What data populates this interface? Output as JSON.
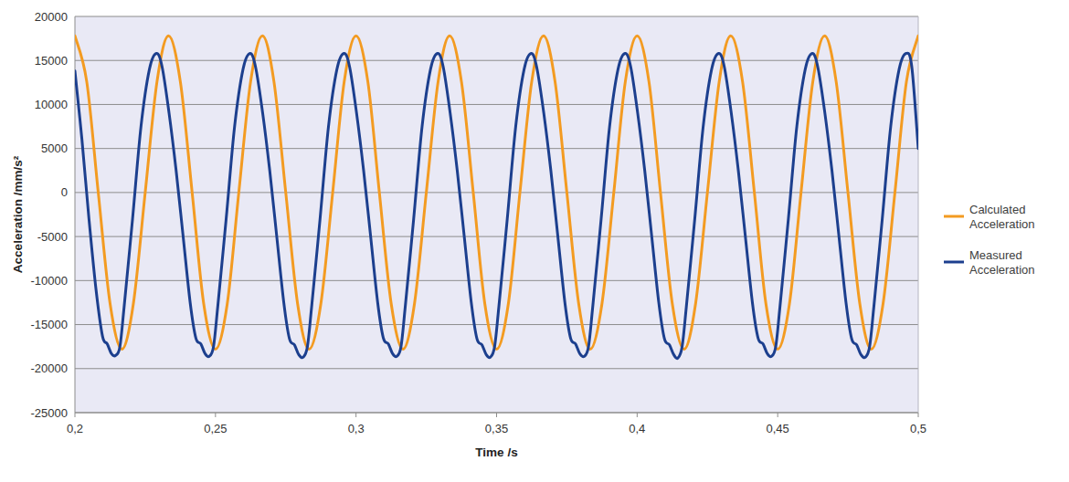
{
  "chart_data": {
    "type": "line",
    "xlabel": "Time /s",
    "ylabel": "Acceleration /mm/s²",
    "xlim": [
      0.2,
      0.5
    ],
    "ylim": [
      -25000,
      20000
    ],
    "xticks": [
      {
        "value": 0.2,
        "label": "0,2"
      },
      {
        "value": 0.25,
        "label": "0,25"
      },
      {
        "value": 0.3,
        "label": "0,3"
      },
      {
        "value": 0.35,
        "label": "0,35"
      },
      {
        "value": 0.4,
        "label": "0,4"
      },
      {
        "value": 0.45,
        "label": "0,45"
      },
      {
        "value": 0.5,
        "label": "0,5"
      }
    ],
    "yticks": [
      -25000,
      -20000,
      -15000,
      -10000,
      -5000,
      0,
      5000,
      10000,
      15000,
      20000
    ],
    "grid": true,
    "legend": "right",
    "series": [
      {
        "name": "Calculated Acceleration",
        "color": "#f39b21",
        "x": [
          0.2,
          0.2042,
          0.2083,
          0.2125,
          0.2167,
          0.2208,
          0.225,
          0.2292,
          0.2333,
          0.2375,
          0.2417,
          0.2458,
          0.25,
          0.2542,
          0.2583,
          0.2625,
          0.2667,
          0.2708,
          0.275,
          0.2792,
          0.2833,
          0.2875,
          0.2917,
          0.2958,
          0.3,
          0.3042,
          0.3083,
          0.3125,
          0.3167,
          0.3208,
          0.325,
          0.3292,
          0.3333,
          0.3375,
          0.3417,
          0.3458,
          0.35,
          0.3542,
          0.3583,
          0.3625,
          0.3667,
          0.3708,
          0.375,
          0.3792,
          0.3833,
          0.3875,
          0.3917,
          0.3958,
          0.4,
          0.4042,
          0.4083,
          0.4125,
          0.4167,
          0.4208,
          0.425,
          0.4292,
          0.4333,
          0.4375,
          0.4417,
          0.4458,
          0.45,
          0.4542,
          0.4583,
          0.4625,
          0.4667,
          0.4708,
          0.475,
          0.4792,
          0.4833,
          0.4875,
          0.4917,
          0.4958,
          0.5
        ],
        "values": [
          17800,
          12600,
          0,
          -12600,
          -17800,
          -12600,
          0,
          12600,
          17800,
          12600,
          0,
          -12600,
          -17800,
          -12600,
          0,
          12600,
          17800,
          12600,
          0,
          -12600,
          -17800,
          -12600,
          0,
          12600,
          17800,
          12600,
          0,
          -12600,
          -17800,
          -12600,
          0,
          12600,
          17800,
          12600,
          0,
          -12600,
          -17800,
          -12600,
          0,
          12600,
          17800,
          12600,
          0,
          -12600,
          -17800,
          -12600,
          0,
          12600,
          17800,
          12600,
          0,
          -12600,
          -17800,
          -12600,
          0,
          12600,
          17800,
          12600,
          0,
          -12600,
          -17800,
          -12600,
          0,
          12600,
          17800,
          12600,
          0,
          -12600,
          -17800,
          -12600,
          0,
          12600,
          17800
        ]
      },
      {
        "name": "Measured Acceleration",
        "color": "#1c3f8e",
        "x": [
          0.2,
          0.2025,
          0.205,
          0.2075,
          0.2098,
          0.2115,
          0.213,
          0.2145,
          0.216,
          0.2175,
          0.2205,
          0.2235,
          0.2265,
          0.229,
          0.231,
          0.2335,
          0.236,
          0.2385,
          0.241,
          0.243,
          0.2448,
          0.2463,
          0.2478,
          0.2493,
          0.2508,
          0.2538,
          0.2568,
          0.2598,
          0.2623,
          0.2643,
          0.2668,
          0.2693,
          0.2718,
          0.2743,
          0.2763,
          0.2781,
          0.2796,
          0.2812,
          0.2827,
          0.2842,
          0.2872,
          0.2902,
          0.2932,
          0.2957,
          0.2977,
          0.3002,
          0.3027,
          0.3052,
          0.3077,
          0.3097,
          0.3115,
          0.313,
          0.3145,
          0.316,
          0.3175,
          0.3205,
          0.3235,
          0.3265,
          0.329,
          0.331,
          0.3335,
          0.336,
          0.3385,
          0.341,
          0.343,
          0.3448,
          0.3463,
          0.3478,
          0.3493,
          0.3508,
          0.3538,
          0.3568,
          0.3598,
          0.3623,
          0.3643,
          0.3668,
          0.3693,
          0.3718,
          0.3743,
          0.3763,
          0.3781,
          0.3796,
          0.3812,
          0.3827,
          0.3842,
          0.3872,
          0.3902,
          0.3932,
          0.3957,
          0.3977,
          0.4002,
          0.4027,
          0.4052,
          0.4077,
          0.4097,
          0.4115,
          0.413,
          0.4145,
          0.416,
          0.4175,
          0.4205,
          0.4235,
          0.4265,
          0.429,
          0.431,
          0.4335,
          0.436,
          0.4385,
          0.441,
          0.443,
          0.4448,
          0.4463,
          0.4478,
          0.4493,
          0.4508,
          0.4538,
          0.4568,
          0.4598,
          0.4623,
          0.4643,
          0.4668,
          0.4693,
          0.4718,
          0.4743,
          0.4763,
          0.4781,
          0.4796,
          0.4812,
          0.4827,
          0.4842,
          0.4872,
          0.4902,
          0.4932,
          0.4957,
          0.4977,
          0.5
        ],
        "values": [
          13800,
          6000,
          -3000,
          -11000,
          -16300,
          -17200,
          -18300,
          -18500,
          -17500,
          -13000,
          -3000,
          7500,
          14000,
          15800,
          14300,
          9000,
          2500,
          -5000,
          -12500,
          -16500,
          -17200,
          -18300,
          -18600,
          -17500,
          -13000,
          -3000,
          7500,
          14000,
          15800,
          14200,
          9000,
          2500,
          -5000,
          -12500,
          -16600,
          -17300,
          -18400,
          -18700,
          -17500,
          -13000,
          -3000,
          7500,
          14000,
          15800,
          14300,
          9000,
          2500,
          -5000,
          -12500,
          -16500,
          -17200,
          -18300,
          -18600,
          -17500,
          -13000,
          -3000,
          7500,
          14000,
          15800,
          14300,
          9000,
          2500,
          -5000,
          -12500,
          -16600,
          -17300,
          -18400,
          -18700,
          -17500,
          -13000,
          -3000,
          7500,
          14000,
          15800,
          14200,
          9000,
          2500,
          -5000,
          -12500,
          -16500,
          -17200,
          -18300,
          -18600,
          -17500,
          -13000,
          -3000,
          7500,
          14000,
          15800,
          14300,
          9000,
          2500,
          -5000,
          -12500,
          -16600,
          -17300,
          -18400,
          -18800,
          -17500,
          -13000,
          -3000,
          7500,
          14000,
          15800,
          14300,
          9000,
          2500,
          -5000,
          -12500,
          -16500,
          -17200,
          -18300,
          -18600,
          -17500,
          -13000,
          -3000,
          7500,
          14000,
          15800,
          14200,
          9000,
          2500,
          -5000,
          -12500,
          -16600,
          -17300,
          -18400,
          -18700,
          -17500,
          -13000,
          -3000,
          7500,
          14000,
          15800,
          14300,
          5000
        ]
      }
    ]
  }
}
